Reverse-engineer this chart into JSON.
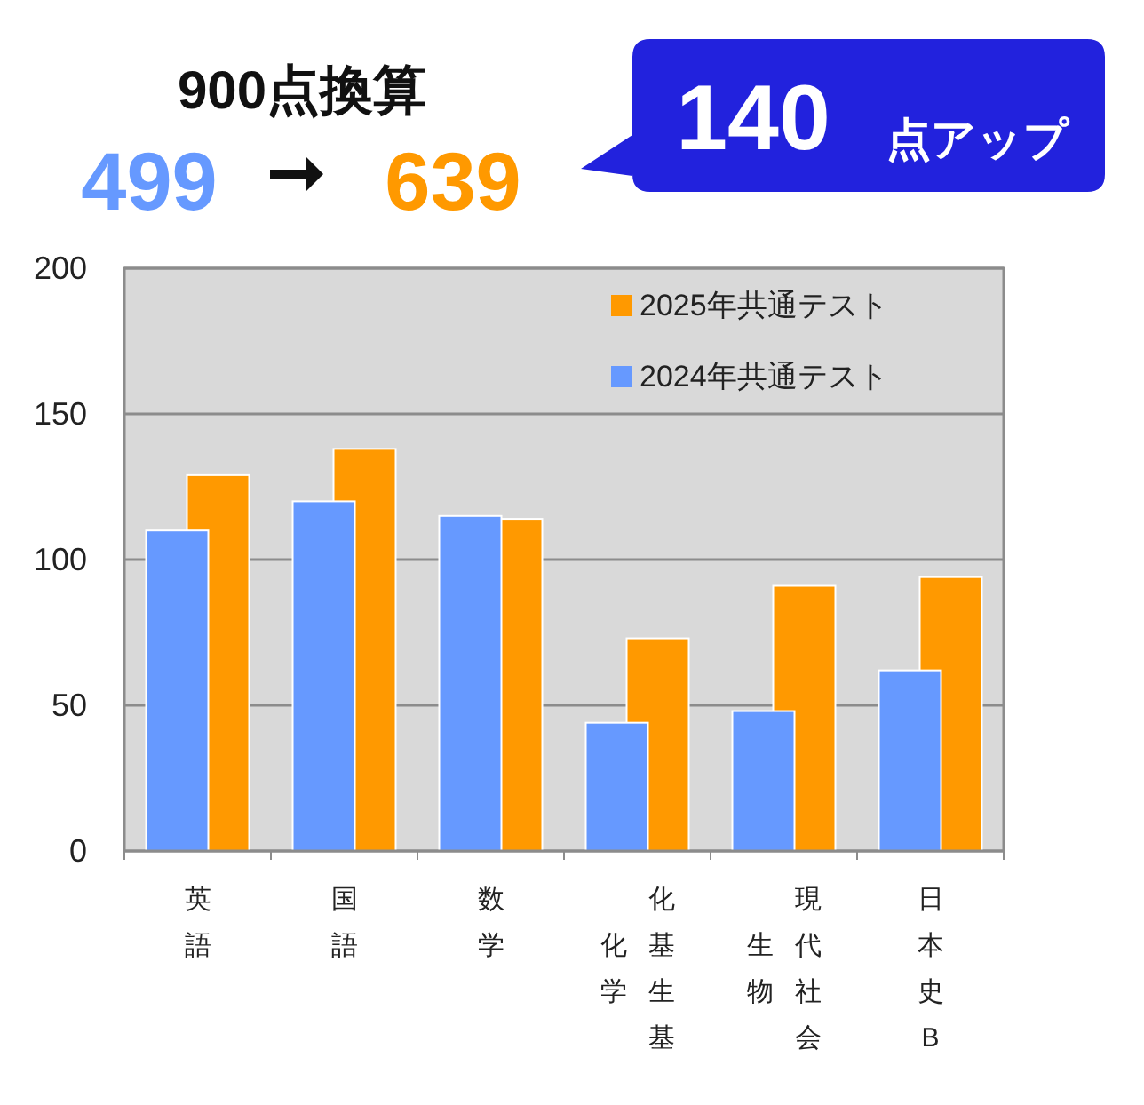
{
  "chart_data": {
    "type": "bar",
    "title": "900点換算",
    "annotations": [
      "499",
      "639",
      "140",
      "点アップ"
    ],
    "categories": [
      "英語",
      "国語",
      "数学",
      "化基生基化学",
      "現代社会生物",
      "日本史B"
    ],
    "series": [
      {
        "name": "2025年共通テスト",
        "color": "#ff9900",
        "values": [
          129,
          138,
          114,
          73,
          91,
          94
        ]
      },
      {
        "name": "2024年共通テスト",
        "color": "#6699ff",
        "values": [
          110,
          120,
          115,
          44,
          48,
          62
        ]
      }
    ],
    "ylim": [
      0,
      200
    ],
    "yticks": [
      0,
      50,
      100,
      150,
      200
    ],
    "grid": "y",
    "legend": "top right"
  }
}
